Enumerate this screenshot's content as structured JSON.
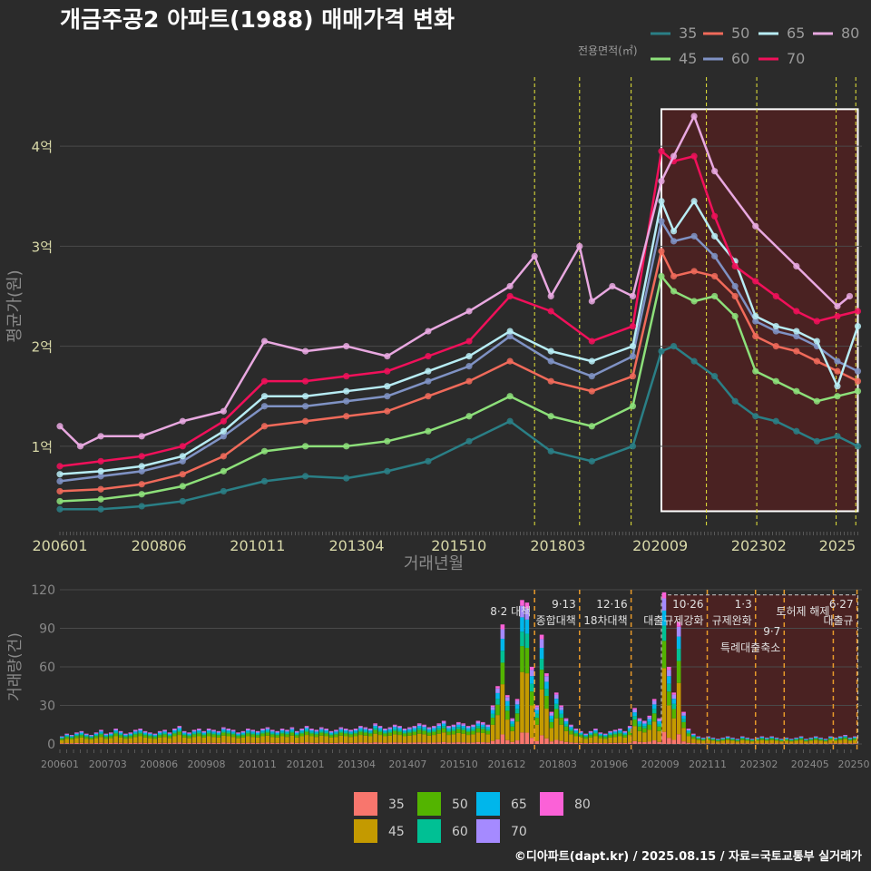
{
  "title": "개금주공2 아파트(1988) 매매가격 변화",
  "credit": "©디아파트(dapt.kr) / 2025.08.15 / 자료=국토교통부 실거래가",
  "colors": {
    "background": "#2b2b2b",
    "grid": "#4a4a4a",
    "tick_text_top": "#d8d8a8",
    "axis_title": "#8a8a8a",
    "highlight_fill": "#4a2222",
    "policy_line": "#e8e83a",
    "policy_line_bottom": "#e89a2a"
  },
  "chart_data": [
    {
      "type": "line",
      "name": "price",
      "xlabel": "거래년월",
      "ylabel": "평균가(원)",
      "x_ticks": [
        "200601",
        "200806",
        "201011",
        "201304",
        "201510",
        "201803",
        "202009",
        "202302",
        "2025"
      ],
      "y_ticks": [
        "1억",
        "2억",
        "3억",
        "4억"
      ],
      "y_tick_values": [
        1,
        2,
        3,
        4
      ],
      "ylim": [
        0.2,
        4.6
      ],
      "xlim": [
        2006.0,
        2025.6
      ],
      "legend_title": "전용면적(㎡)",
      "legend_position": "top-right",
      "policy_lines_x": [
        2017.6,
        2018.7,
        2019.96,
        2021.8,
        2023.03,
        2024.97,
        2025.45
      ],
      "highlight_x": [
        2020.7,
        2025.5
      ],
      "series": [
        {
          "name": "35",
          "color": "#2a7f86",
          "x": [
            2006.0,
            2007.0,
            2008.0,
            2009.0,
            2010.0,
            2011.0,
            2012.0,
            2013.0,
            2014.0,
            2015.0,
            2016.0,
            2017.0,
            2018.0,
            2019.0,
            2020.0,
            2020.7,
            2021.0,
            2021.5,
            2022.0,
            2022.5,
            2023.0,
            2023.5,
            2024.0,
            2024.5,
            2025.0,
            2025.5
          ],
          "values": [
            0.37,
            0.37,
            0.4,
            0.45,
            0.55,
            0.65,
            0.7,
            0.68,
            0.75,
            0.85,
            1.05,
            1.25,
            0.95,
            0.85,
            1.0,
            1.95,
            2.0,
            1.85,
            1.7,
            1.45,
            1.3,
            1.25,
            1.15,
            1.05,
            1.1,
            1.0
          ]
        },
        {
          "name": "45",
          "color": "#8de07a",
          "x": [
            2006.0,
            2007.0,
            2008.0,
            2009.0,
            2010.0,
            2011.0,
            2012.0,
            2013.0,
            2014.0,
            2015.0,
            2016.0,
            2017.0,
            2018.0,
            2019.0,
            2020.0,
            2020.7,
            2021.0,
            2021.5,
            2022.0,
            2022.5,
            2023.0,
            2023.5,
            2024.0,
            2024.5,
            2025.0,
            2025.5
          ],
          "values": [
            0.45,
            0.47,
            0.52,
            0.6,
            0.75,
            0.95,
            1.0,
            1.0,
            1.05,
            1.15,
            1.3,
            1.5,
            1.3,
            1.2,
            1.4,
            2.7,
            2.55,
            2.45,
            2.5,
            2.3,
            1.75,
            1.65,
            1.55,
            1.45,
            1.5,
            1.55
          ]
        },
        {
          "name": "50",
          "color": "#f06a5a",
          "x": [
            2006.0,
            2007.0,
            2008.0,
            2009.0,
            2010.0,
            2011.0,
            2012.0,
            2013.0,
            2014.0,
            2015.0,
            2016.0,
            2017.0,
            2018.0,
            2019.0,
            2020.0,
            2020.7,
            2021.0,
            2021.5,
            2022.0,
            2022.5,
            2023.0,
            2023.5,
            2024.0,
            2024.5,
            2025.0,
            2025.5
          ],
          "values": [
            0.55,
            0.57,
            0.62,
            0.72,
            0.9,
            1.2,
            1.25,
            1.3,
            1.35,
            1.5,
            1.65,
            1.85,
            1.65,
            1.55,
            1.7,
            2.95,
            2.7,
            2.75,
            2.7,
            2.5,
            2.1,
            2.0,
            1.95,
            1.85,
            1.75,
            1.65
          ]
        },
        {
          "name": "60",
          "color": "#7f92c4",
          "x": [
            2006.0,
            2007.0,
            2008.0,
            2009.0,
            2010.0,
            2011.0,
            2012.0,
            2013.0,
            2014.0,
            2015.0,
            2016.0,
            2017.0,
            2018.0,
            2019.0,
            2020.0,
            2020.7,
            2021.0,
            2021.5,
            2022.0,
            2022.5,
            2023.0,
            2023.5,
            2024.0,
            2024.5,
            2025.0,
            2025.5
          ],
          "values": [
            0.65,
            0.7,
            0.75,
            0.85,
            1.1,
            1.4,
            1.4,
            1.45,
            1.5,
            1.65,
            1.8,
            2.1,
            1.85,
            1.7,
            1.9,
            3.25,
            3.05,
            3.1,
            2.9,
            2.6,
            2.25,
            2.15,
            2.1,
            2.0,
            1.85,
            1.75
          ]
        },
        {
          "name": "65",
          "color": "#b7ecf4",
          "x": [
            2006.0,
            2007.0,
            2008.0,
            2009.0,
            2010.0,
            2011.0,
            2012.0,
            2013.0,
            2014.0,
            2015.0,
            2016.0,
            2017.0,
            2018.0,
            2019.0,
            2020.0,
            2020.7,
            2021.0,
            2021.5,
            2022.0,
            2022.5,
            2023.0,
            2023.5,
            2024.0,
            2024.5,
            2025.0,
            2025.5
          ],
          "values": [
            0.72,
            0.75,
            0.8,
            0.9,
            1.15,
            1.5,
            1.5,
            1.55,
            1.6,
            1.75,
            1.9,
            2.15,
            1.95,
            1.85,
            2.0,
            3.45,
            3.15,
            3.45,
            3.1,
            2.85,
            2.3,
            2.2,
            2.15,
            2.05,
            1.6,
            2.2
          ]
        },
        {
          "name": "70",
          "color": "#f0105a",
          "x": [
            2006.0,
            2007.0,
            2008.0,
            2009.0,
            2010.0,
            2011.0,
            2012.0,
            2013.0,
            2014.0,
            2015.0,
            2016.0,
            2017.0,
            2018.0,
            2019.0,
            2020.0,
            2020.7,
            2021.0,
            2021.5,
            2022.0,
            2022.5,
            2023.0,
            2023.5,
            2024.0,
            2024.5,
            2025.0,
            2025.5
          ],
          "values": [
            0.8,
            0.85,
            0.9,
            1.0,
            1.25,
            1.65,
            1.65,
            1.7,
            1.75,
            1.9,
            2.05,
            2.5,
            2.35,
            2.05,
            2.2,
            3.95,
            3.85,
            3.9,
            3.3,
            2.8,
            2.65,
            2.5,
            2.35,
            2.25,
            2.3,
            2.35
          ]
        },
        {
          "name": "80",
          "color": "#e8a8e0",
          "x": [
            2006.0,
            2006.5,
            2007.0,
            2008.0,
            2009.0,
            2010.0,
            2011.0,
            2012.0,
            2013.0,
            2014.0,
            2015.0,
            2016.0,
            2017.0,
            2017.6,
            2018.0,
            2018.7,
            2019.0,
            2019.5,
            2020.0,
            2020.7,
            2021.0,
            2021.5,
            2022.0,
            2023.0,
            2024.0,
            2025.0,
            2025.3
          ],
          "values": [
            1.2,
            1.0,
            1.1,
            1.1,
            1.25,
            1.35,
            2.05,
            1.95,
            2.0,
            1.9,
            2.15,
            2.35,
            2.6,
            2.9,
            2.5,
            3.0,
            2.45,
            2.6,
            2.5,
            3.65,
            3.9,
            4.3,
            3.75,
            3.2,
            2.8,
            2.4,
            2.5
          ]
        }
      ]
    },
    {
      "type": "bar",
      "name": "volume",
      "xlabel": "",
      "ylabel": "거래량(건)",
      "x_ticks": [
        "200601",
        "200703",
        "200806",
        "200908",
        "201011",
        "201201",
        "201304",
        "201407",
        "201510",
        "201612",
        "201803",
        "201906",
        "202009",
        "202111",
        "202302",
        "202405",
        "20250"
      ],
      "y_ticks": [
        "0",
        "30",
        "60",
        "90",
        "120"
      ],
      "y_tick_values": [
        0,
        30,
        60,
        90,
        120
      ],
      "ylim": [
        0,
        120
      ],
      "xlim": [
        2006.0,
        2025.6
      ],
      "stack_series": [
        "35",
        "45",
        "50",
        "60",
        "65",
        "70",
        "80"
      ],
      "stack_colors": [
        "#f8766d",
        "#c49a00",
        "#53b400",
        "#00c094",
        "#00b6eb",
        "#a58aff",
        "#fb61d7"
      ],
      "stack_shares": [
        0.08,
        0.42,
        0.18,
        0.1,
        0.1,
        0.08,
        0.04
      ],
      "totals": [
        6,
        8,
        7,
        9,
        10,
        8,
        7,
        9,
        11,
        8,
        9,
        12,
        10,
        8,
        9,
        11,
        12,
        10,
        9,
        8,
        10,
        11,
        9,
        12,
        14,
        10,
        9,
        11,
        12,
        10,
        12,
        11,
        10,
        13,
        12,
        11,
        9,
        10,
        12,
        11,
        10,
        12,
        13,
        11,
        10,
        12,
        11,
        13,
        10,
        12,
        14,
        12,
        11,
        13,
        12,
        10,
        11,
        13,
        12,
        11,
        12,
        14,
        13,
        12,
        16,
        14,
        12,
        13,
        15,
        14,
        12,
        13,
        14,
        16,
        15,
        13,
        14,
        16,
        18,
        14,
        15,
        17,
        16,
        14,
        15,
        18,
        17,
        15,
        30,
        45,
        93,
        38,
        20,
        35,
        112,
        110,
        60,
        30,
        85,
        55,
        25,
        40,
        30,
        20,
        15,
        12,
        10,
        8,
        10,
        12,
        9,
        8,
        10,
        11,
        12,
        10,
        14,
        28,
        20,
        18,
        22,
        35,
        20,
        118,
        60,
        40,
        95,
        25,
        12,
        8,
        6,
        5,
        6,
        5,
        4,
        5,
        6,
        5,
        4,
        6,
        5,
        4,
        5,
        6,
        5,
        6,
        5,
        4,
        5,
        4,
        5,
        6,
        4,
        5,
        6,
        5,
        4,
        6,
        5,
        6,
        7,
        5,
        6
      ],
      "policy_markers": [
        {
          "x": 2017.6,
          "date": "",
          "label": "8·2 대책"
        },
        {
          "x": 2018.7,
          "date": "9·13",
          "label": "종합대책"
        },
        {
          "x": 2019.96,
          "date": "12·16",
          "label": "18차대책"
        },
        {
          "x": 2021.82,
          "date": "10·26",
          "label": "대출규제강화"
        },
        {
          "x": 2023.0,
          "date": "1·3",
          "label": "규제완화"
        },
        {
          "x": 2023.7,
          "date": "9·7",
          "label": "특례대출축소"
        },
        {
          "x": 2024.9,
          "date": "",
          "label": "토허제 해제"
        },
        {
          "x": 2025.48,
          "date": "6·27",
          "label": "대출규"
        }
      ],
      "legend_position": "bottom-center"
    }
  ]
}
